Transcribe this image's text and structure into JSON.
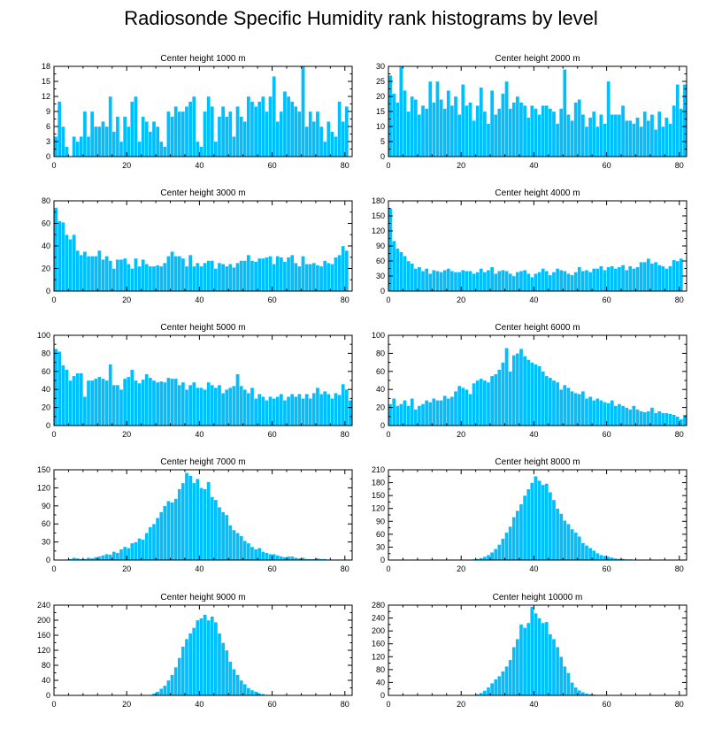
{
  "title": "Radiosonde Specific Humidity rank histograms by level",
  "colors": {
    "bar": "#00bfff",
    "bar_edge": "#ffffff",
    "axis": "#000000"
  },
  "chart_data": [
    {
      "type": "bar",
      "title": "Center height 1000 m",
      "xlim": [
        0,
        82
      ],
      "ylim": [
        0,
        18
      ],
      "xticks": [
        0,
        20,
        40,
        60,
        80
      ],
      "yticks": [
        0,
        3,
        6,
        9,
        12,
        15,
        18
      ],
      "x_start": 0,
      "values": [
        4,
        11,
        6,
        2,
        0,
        4,
        3,
        4,
        9,
        4,
        9,
        6,
        6,
        7,
        6,
        12,
        5,
        8,
        3,
        8,
        6,
        11,
        12,
        3,
        8,
        7,
        5,
        7,
        6,
        3,
        2,
        9,
        8,
        10,
        9,
        9,
        10,
        11,
        12,
        3,
        2,
        9,
        12,
        10,
        3,
        8,
        10,
        8,
        9,
        4,
        10,
        8,
        7,
        12,
        11,
        10,
        11,
        12,
        9,
        12,
        16,
        7,
        9,
        13,
        12,
        11,
        10,
        9,
        18,
        6,
        9,
        7,
        9,
        6,
        3,
        7,
        5,
        4,
        11,
        7,
        10
      ]
    },
    {
      "type": "bar",
      "title": "Center height 2000 m",
      "xlim": [
        0,
        82
      ],
      "ylim": [
        0,
        30
      ],
      "xticks": [
        0,
        20,
        40,
        60,
        80
      ],
      "yticks": [
        0,
        5,
        10,
        15,
        20,
        25,
        30
      ],
      "x_start": 0,
      "values": [
        27,
        21,
        18,
        30,
        22,
        15,
        20,
        19,
        14,
        17,
        16,
        25,
        18,
        25,
        19,
        16,
        22,
        17,
        20,
        14,
        24,
        17,
        18,
        12,
        17,
        23,
        15,
        11,
        22,
        14,
        16,
        21,
        25,
        16,
        18,
        20,
        18,
        17,
        13,
        17,
        16,
        14,
        17,
        17,
        16,
        15,
        11,
        16,
        29,
        14,
        12,
        18,
        19,
        14,
        10,
        13,
        15,
        10,
        14,
        11,
        25,
        14,
        14,
        14,
        17,
        12,
        12,
        11,
        13,
        10,
        15,
        12,
        14,
        9,
        15,
        10,
        13,
        11,
        17,
        24,
        16,
        24
      ]
    },
    {
      "type": "bar",
      "title": "Center height 3000 m",
      "xlim": [
        0,
        82
      ],
      "ylim": [
        0,
        80
      ],
      "xticks": [
        0,
        20,
        40,
        60,
        80
      ],
      "yticks": [
        0,
        20,
        40,
        60,
        80
      ],
      "x_start": 0,
      "values": [
        74,
        62,
        61,
        50,
        46,
        50,
        36,
        32,
        35,
        31,
        31,
        31,
        36,
        28,
        31,
        27,
        20,
        28,
        28,
        29,
        24,
        20,
        29,
        22,
        28,
        24,
        22,
        22,
        23,
        22,
        25,
        31,
        35,
        31,
        31,
        29,
        22,
        32,
        22,
        25,
        22,
        25,
        27,
        27,
        20,
        25,
        24,
        22,
        24,
        21,
        25,
        27,
        27,
        32,
        27,
        26,
        29,
        29,
        30,
        31,
        24,
        31,
        30,
        26,
        30,
        32,
        25,
        22,
        31,
        24,
        24,
        25,
        23,
        22,
        27,
        25,
        24,
        30,
        32,
        40,
        36
      ]
    },
    {
      "type": "bar",
      "title": "Center height 4000 m",
      "xlim": [
        0,
        82
      ],
      "ylim": [
        0,
        180
      ],
      "xticks": [
        0,
        20,
        40,
        60,
        80
      ],
      "yticks": [
        0,
        30,
        60,
        90,
        120,
        150,
        180
      ],
      "x_start": 0,
      "values": [
        165,
        100,
        85,
        78,
        70,
        60,
        55,
        45,
        48,
        40,
        45,
        35,
        42,
        40,
        38,
        42,
        45,
        40,
        38,
        38,
        42,
        40,
        40,
        35,
        38,
        45,
        38,
        42,
        48,
        35,
        40,
        42,
        40,
        35,
        30,
        38,
        40,
        42,
        35,
        28,
        35,
        38,
        45,
        40,
        32,
        38,
        45,
        42,
        40,
        35,
        32,
        38,
        48,
        40,
        42,
        38,
        45,
        45,
        50,
        42,
        48,
        50,
        45,
        48,
        52,
        42,
        50,
        45,
        48,
        58,
        58,
        65,
        55,
        58,
        52,
        50,
        45,
        50,
        62,
        60,
        65
      ]
    },
    {
      "type": "bar",
      "title": "Center height 5000 m",
      "xlim": [
        0,
        82
      ],
      "ylim": [
        0,
        100
      ],
      "xticks": [
        0,
        20,
        40,
        60,
        80
      ],
      "yticks": [
        0,
        20,
        40,
        60,
        80,
        100
      ],
      "x_start": 0,
      "values": [
        85,
        82,
        67,
        62,
        50,
        55,
        58,
        58,
        32,
        50,
        50,
        52,
        54,
        52,
        50,
        68,
        45,
        45,
        40,
        52,
        54,
        62,
        50,
        47,
        51,
        57,
        53,
        50,
        48,
        49,
        48,
        53,
        52,
        52,
        45,
        48,
        40,
        45,
        48,
        42,
        42,
        40,
        48,
        45,
        42,
        45,
        36,
        40,
        42,
        44,
        57,
        44,
        40,
        36,
        42,
        30,
        35,
        32,
        28,
        32,
        30,
        32,
        35,
        28,
        32,
        35,
        32,
        35,
        30,
        35,
        30,
        36,
        42,
        35,
        38,
        35,
        30,
        36,
        34,
        46,
        40,
        28
      ]
    },
    {
      "type": "bar",
      "title": "Center height 6000 m",
      "xlim": [
        0,
        82
      ],
      "ylim": [
        0,
        100
      ],
      "xticks": [
        0,
        20,
        40,
        60,
        80
      ],
      "yticks": [
        0,
        20,
        40,
        60,
        80,
        100
      ],
      "x_start": 0,
      "values": [
        24,
        30,
        22,
        24,
        28,
        22,
        30,
        18,
        22,
        24,
        28,
        26,
        30,
        28,
        28,
        33,
        30,
        32,
        38,
        44,
        42,
        40,
        35,
        47,
        50,
        52,
        50,
        48,
        55,
        57,
        62,
        70,
        86,
        60,
        78,
        80,
        85,
        77,
        73,
        70,
        68,
        66,
        60,
        55,
        53,
        50,
        48,
        40,
        45,
        42,
        38,
        36,
        35,
        38,
        30,
        32,
        28,
        30,
        28,
        26,
        25,
        28,
        22,
        24,
        22,
        20,
        18,
        22,
        18,
        16,
        15,
        16,
        20,
        14,
        16,
        14,
        14,
        13,
        12,
        10,
        7,
        12
      ]
    },
    {
      "type": "bar",
      "title": "Center height 7000 m",
      "xlim": [
        0,
        82
      ],
      "ylim": [
        0,
        150
      ],
      "xticks": [
        0,
        20,
        40,
        60,
        80
      ],
      "yticks": [
        0,
        30,
        60,
        90,
        120,
        150
      ],
      "x_start": 0,
      "values": [
        0,
        0,
        0,
        1,
        2,
        4,
        3,
        2,
        2,
        4,
        3,
        5,
        6,
        8,
        10,
        9,
        14,
        12,
        18,
        22,
        20,
        28,
        30,
        36,
        34,
        45,
        55,
        60,
        70,
        80,
        90,
        98,
        96,
        102,
        118,
        128,
        145,
        140,
        128,
        135,
        120,
        118,
        130,
        105,
        100,
        88,
        80,
        75,
        58,
        50,
        45,
        40,
        32,
        28,
        22,
        18,
        20,
        14,
        12,
        10,
        10,
        8,
        6,
        5,
        6,
        6,
        4,
        3,
        4,
        2,
        2,
        2,
        3,
        2,
        2,
        1,
        1,
        1,
        1,
        1,
        1
      ]
    },
    {
      "type": "bar",
      "title": "Center height 8000 m",
      "xlim": [
        0,
        82
      ],
      "ylim": [
        0,
        210
      ],
      "xticks": [
        0,
        20,
        40,
        60,
        80
      ],
      "yticks": [
        0,
        30,
        60,
        90,
        120,
        150,
        180,
        210
      ],
      "x_start": 0,
      "values": [
        0,
        0,
        0,
        0,
        0,
        0,
        0,
        0,
        0,
        0,
        0,
        0,
        0,
        0,
        0,
        0,
        0,
        0,
        0,
        0,
        0,
        0,
        1,
        2,
        3,
        5,
        8,
        12,
        18,
        26,
        36,
        50,
        64,
        78,
        100,
        115,
        130,
        150,
        165,
        180,
        195,
        185,
        175,
        178,
        158,
        140,
        120,
        108,
        92,
        84,
        72,
        64,
        55,
        40,
        34,
        28,
        22,
        16,
        12,
        10,
        8,
        6,
        4,
        3,
        3,
        2,
        2,
        1,
        1,
        1,
        1,
        0,
        0,
        0,
        0,
        0,
        0,
        0,
        0,
        0,
        0
      ]
    },
    {
      "type": "bar",
      "title": "Center height 9000 m",
      "xlim": [
        0,
        82
      ],
      "ylim": [
        0,
        240
      ],
      "xticks": [
        0,
        20,
        40,
        60,
        80
      ],
      "yticks": [
        0,
        40,
        80,
        120,
        160,
        200,
        240
      ],
      "x_start": 0,
      "values": [
        0,
        0,
        0,
        0,
        0,
        0,
        0,
        0,
        0,
        0,
        0,
        0,
        0,
        0,
        0,
        0,
        0,
        0,
        0,
        0,
        0,
        0,
        0,
        0,
        0,
        0,
        2,
        5,
        10,
        18,
        26,
        40,
        55,
        75,
        100,
        130,
        150,
        165,
        180,
        200,
        205,
        215,
        200,
        210,
        195,
        165,
        140,
        120,
        90,
        70,
        55,
        40,
        30,
        20,
        14,
        10,
        6,
        4,
        2,
        2,
        1,
        1,
        1,
        0,
        0,
        0,
        0,
        0,
        0,
        0,
        0,
        0,
        0,
        0,
        0,
        0,
        0,
        0,
        0,
        0,
        0
      ]
    },
    {
      "type": "bar",
      "title": "Center height 10000 m",
      "xlim": [
        0,
        82
      ],
      "ylim": [
        0,
        280
      ],
      "xticks": [
        0,
        20,
        40,
        60,
        80
      ],
      "yticks": [
        0,
        40,
        80,
        120,
        160,
        200,
        240,
        280
      ],
      "x_start": 0,
      "values": [
        0,
        0,
        0,
        0,
        0,
        0,
        0,
        0,
        0,
        0,
        0,
        0,
        0,
        0,
        0,
        0,
        0,
        0,
        0,
        0,
        0,
        0,
        1,
        2,
        4,
        8,
        15,
        25,
        38,
        50,
        60,
        75,
        90,
        110,
        150,
        175,
        220,
        210,
        225,
        275,
        255,
        240,
        225,
        228,
        190,
        175,
        150,
        120,
        90,
        70,
        40,
        25,
        16,
        10,
        6,
        4,
        3,
        2,
        2,
        2,
        1,
        1,
        1,
        0,
        0,
        0,
        0,
        0,
        0,
        0,
        0,
        0,
        0,
        0,
        0,
        0,
        0,
        0,
        0,
        0,
        0
      ]
    }
  ]
}
